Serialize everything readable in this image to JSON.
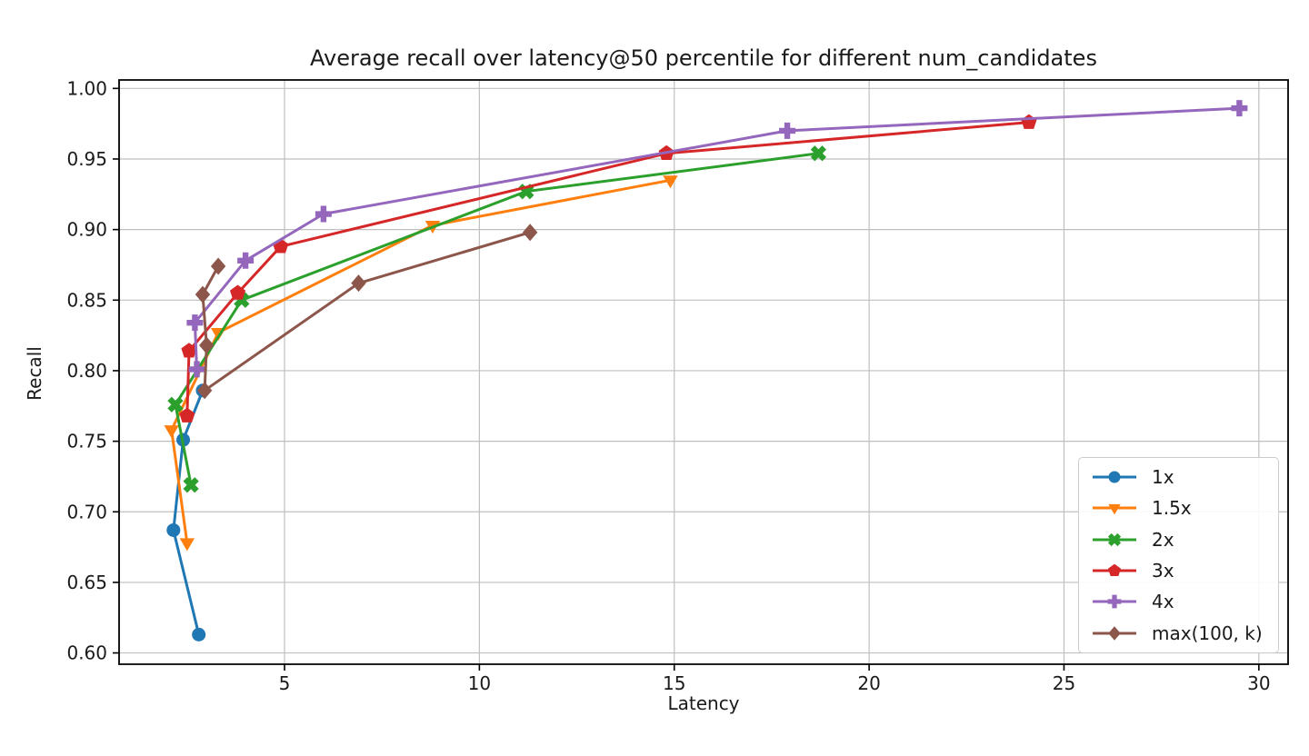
{
  "chart_data": {
    "type": "line",
    "title": "Average recall over latency@50 percentile for different num_candidates",
    "xlabel": "Latency",
    "ylabel": "Recall",
    "xlim": [
      0.755,
      30.75
    ],
    "ylim": [
      0.592,
      1.006
    ],
    "grid": true,
    "x_ticks": [
      {
        "value": 5,
        "label": "5"
      },
      {
        "value": 10,
        "label": "10"
      },
      {
        "value": 15,
        "label": "15"
      },
      {
        "value": 20,
        "label": "20"
      },
      {
        "value": 25,
        "label": "25"
      },
      {
        "value": 30,
        "label": "30"
      }
    ],
    "y_ticks": [
      {
        "value": 0.6,
        "label": "0.60"
      },
      {
        "value": 0.65,
        "label": "0.65"
      },
      {
        "value": 0.7,
        "label": "0.70"
      },
      {
        "value": 0.75,
        "label": "0.75"
      },
      {
        "value": 0.8,
        "label": "0.80"
      },
      {
        "value": 0.85,
        "label": "0.85"
      },
      {
        "value": 0.9,
        "label": "0.90"
      },
      {
        "value": 0.95,
        "label": "0.95"
      },
      {
        "value": 1.0,
        "label": "1.00"
      }
    ],
    "legend": {
      "position": "lower right"
    },
    "series": [
      {
        "name": "1x",
        "color": "#1f77b4",
        "marker": "circle",
        "points": [
          [
            2.8,
            0.613
          ],
          [
            2.15,
            0.687
          ],
          [
            2.4,
            0.751
          ],
          [
            2.9,
            0.786
          ]
        ]
      },
      {
        "name": "1.5x",
        "color": "#ff7f0e",
        "marker": "triangle-down",
        "points": [
          [
            2.5,
            0.678
          ],
          [
            2.1,
            0.758
          ],
          [
            3.3,
            0.827
          ],
          [
            8.8,
            0.903
          ],
          [
            14.9,
            0.935
          ]
        ]
      },
      {
        "name": "2x",
        "color": "#2ca02c",
        "marker": "x-filled",
        "points": [
          [
            2.6,
            0.719
          ],
          [
            2.2,
            0.776
          ],
          [
            3.9,
            0.85
          ],
          [
            11.2,
            0.927
          ],
          [
            18.7,
            0.954
          ]
        ]
      },
      {
        "name": "3x",
        "color": "#d62728",
        "marker": "pentagon",
        "points": [
          [
            2.5,
            0.768
          ],
          [
            2.55,
            0.814
          ],
          [
            3.8,
            0.855
          ],
          [
            4.9,
            0.888
          ],
          [
            14.8,
            0.954
          ],
          [
            24.1,
            0.976
          ]
        ]
      },
      {
        "name": "4x",
        "color": "#9467bd",
        "marker": "plus",
        "points": [
          [
            2.75,
            0.801
          ],
          [
            2.7,
            0.834
          ],
          [
            4.0,
            0.878
          ],
          [
            6.0,
            0.911
          ],
          [
            17.9,
            0.97
          ],
          [
            29.5,
            0.986
          ]
        ]
      },
      {
        "name": "max(100, k)",
        "color": "#8c564b",
        "marker": "diamond",
        "points": [
          [
            3.3,
            0.874
          ],
          [
            2.9,
            0.854
          ],
          [
            3.0,
            0.818
          ],
          [
            2.95,
            0.786
          ],
          [
            6.9,
            0.862
          ],
          [
            11.3,
            0.898
          ]
        ]
      }
    ]
  }
}
